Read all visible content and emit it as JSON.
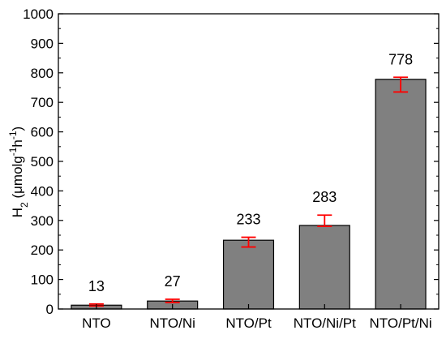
{
  "chart_data": {
    "type": "bar",
    "categories": [
      "NTO",
      "NTO/Ni",
      "NTO/Pt",
      "NTO/Ni/Pt",
      "NTO/Pt/Ni"
    ],
    "values": [
      13,
      27,
      233,
      283,
      778
    ],
    "value_labels": [
      "13",
      "27",
      "233",
      "283",
      "778"
    ],
    "error_low": [
      10,
      22,
      210,
      280,
      735
    ],
    "error_high": [
      17,
      33,
      243,
      318,
      785
    ],
    "title": "",
    "xlabel": "",
    "ylabel": "H2 (μmolg-1h-1)",
    "ylabel_parts": {
      "main": "H",
      "sub": "2",
      "unit_open": " (μmolg",
      "sup1": "-1",
      "mid": "h",
      "sup2": "-1",
      "close": ")"
    },
    "ylim": [
      0,
      1000
    ],
    "yticks": [
      0,
      100,
      200,
      300,
      400,
      500,
      600,
      700,
      800,
      900,
      1000
    ],
    "ytick_labels": [
      "0",
      "100",
      "200",
      "300",
      "400",
      "500",
      "600",
      "700",
      "800",
      "900",
      "1000"
    ],
    "grid": false,
    "legend": "none",
    "colors": {
      "bar_fill": "#808080",
      "bar_stroke": "#000000",
      "error_bar": "#ff0000",
      "axis": "#000000"
    }
  }
}
